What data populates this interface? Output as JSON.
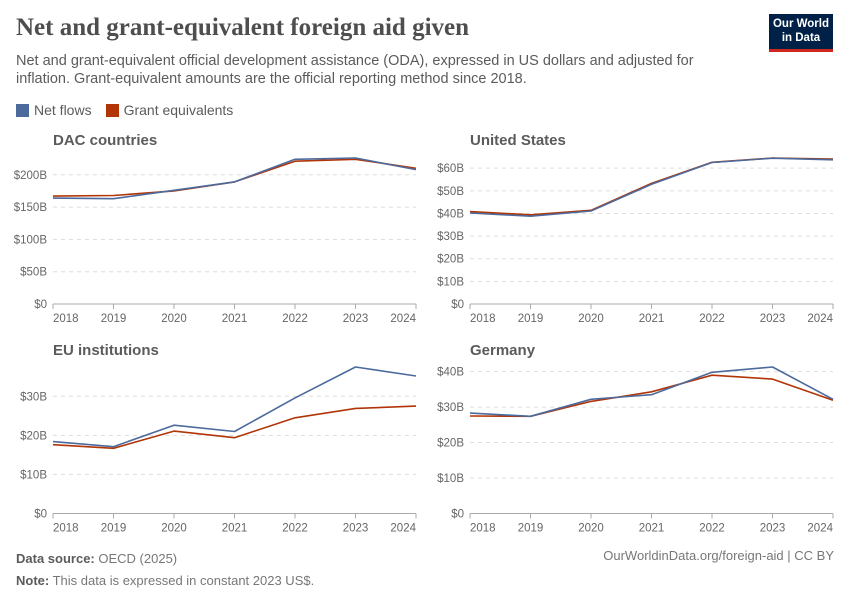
{
  "header": {
    "title": "Net and grant-equivalent foreign aid given",
    "subtitle": "Net and grant-equivalent official development assistance (ODA), expressed in US dollars and adjusted for inflation. Grant-equivalent amounts are the official reporting method since 2018.",
    "logo_line1": "Our World",
    "logo_line2": "in Data"
  },
  "legend": [
    {
      "name": "Net flows",
      "color": "#4c6a9c"
    },
    {
      "name": "Grant equivalents",
      "color": "#b13507"
    }
  ],
  "chart_data": [
    {
      "type": "line",
      "title": "DAC countries",
      "x": [
        2018,
        2019,
        2020,
        2021,
        2022,
        2023,
        2024
      ],
      "yticks": [
        0,
        50,
        100,
        150,
        200
      ],
      "ytick_labels": [
        "$0",
        "$50B",
        "$100B",
        "$150B",
        "$200B"
      ],
      "series": [
        {
          "name": "Net flows",
          "values": [
            164,
            163,
            176,
            189,
            224,
            226,
            208
          ]
        },
        {
          "name": "Grant equivalents",
          "values": [
            167,
            168,
            175,
            189,
            221,
            224,
            210
          ]
        }
      ]
    },
    {
      "type": "line",
      "title": "United States",
      "x": [
        2018,
        2019,
        2020,
        2021,
        2022,
        2023,
        2024
      ],
      "yticks": [
        0,
        10,
        20,
        30,
        40,
        50,
        60
      ],
      "ytick_labels": [
        "$0",
        "$10B",
        "$20B",
        "$30B",
        "$40B",
        "$50B",
        "$60B"
      ],
      "series": [
        {
          "name": "Net flows",
          "values": [
            40.2,
            38.8,
            41.1,
            52.9,
            62.5,
            64.4,
            63.7
          ]
        },
        {
          "name": "Grant equivalents",
          "values": [
            40.8,
            39.4,
            41.4,
            53.3,
            62.6,
            64.5,
            64.0
          ]
        }
      ]
    },
    {
      "type": "line",
      "title": "EU institutions",
      "x": [
        2018,
        2019,
        2020,
        2021,
        2022,
        2023,
        2024
      ],
      "yticks": [
        0,
        10,
        20,
        30
      ],
      "ytick_labels": [
        "$0",
        "$10B",
        "$20B",
        "$30B"
      ],
      "series": [
        {
          "name": "Net flows",
          "values": [
            18.4,
            17.1,
            22.6,
            21.0,
            29.6,
            37.5,
            35.2
          ]
        },
        {
          "name": "Grant equivalents",
          "values": [
            17.6,
            16.7,
            21.1,
            19.4,
            24.5,
            26.9,
            27.5
          ]
        }
      ]
    },
    {
      "type": "line",
      "title": "Germany",
      "x": [
        2018,
        2019,
        2020,
        2021,
        2022,
        2023,
        2024
      ],
      "yticks": [
        0,
        10,
        20,
        30,
        40
      ],
      "ytick_labels": [
        "$0",
        "$10B",
        "$20B",
        "$30B",
        "$40B"
      ],
      "series": [
        {
          "name": "Net flows",
          "values": [
            28.3,
            27.4,
            32.2,
            33.5,
            39.8,
            41.3,
            32.2
          ]
        },
        {
          "name": "Grant equivalents",
          "values": [
            27.5,
            27.4,
            31.6,
            34.3,
            39.0,
            37.9,
            31.9
          ]
        }
      ]
    }
  ],
  "footer": {
    "source_label": "Data source:",
    "source": "OECD (2025)",
    "note_label": "Note:",
    "note": "This data is expressed in constant 2023 US$.",
    "url": "OurWorldinData.org/foreign-aid | CC BY"
  }
}
